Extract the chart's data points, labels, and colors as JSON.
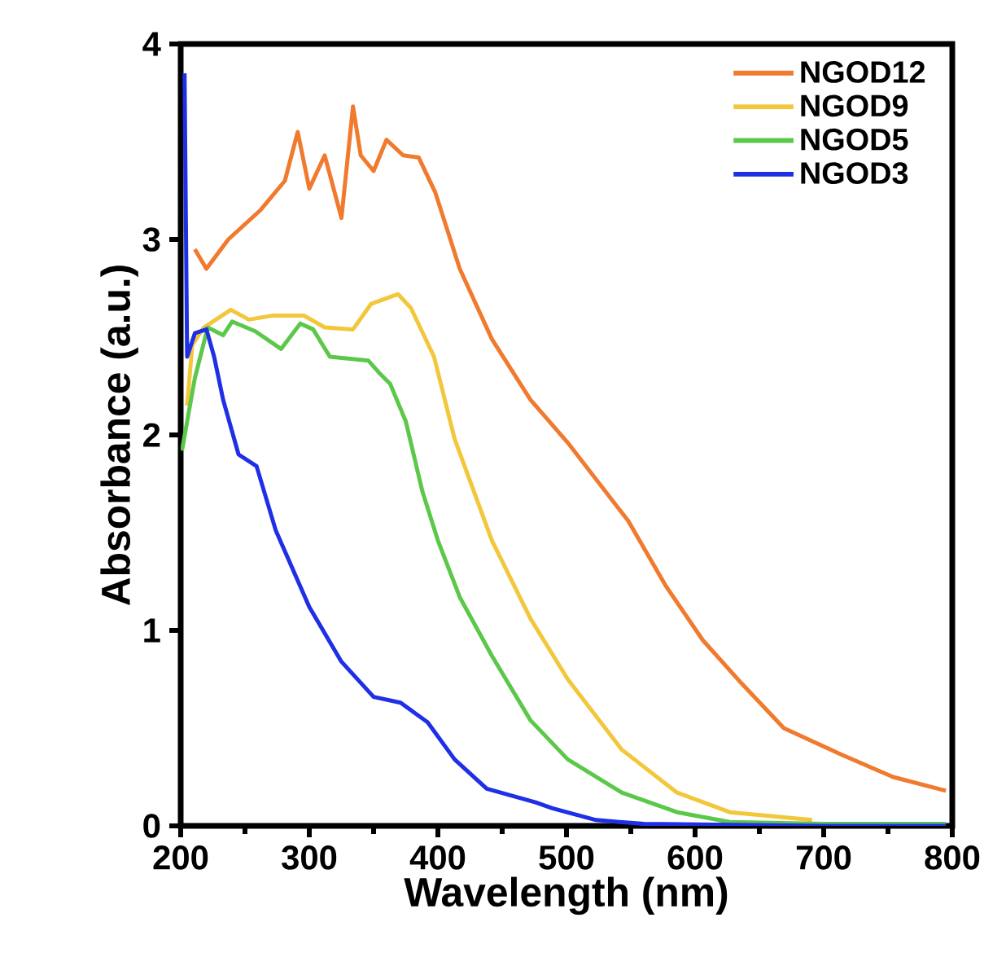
{
  "chart_data": {
    "type": "line",
    "xlabel": "Wavelength (nm)",
    "ylabel": "Absorbance (a.u.)",
    "xlim": [
      200,
      800
    ],
    "ylim": [
      0,
      4
    ],
    "xticks": [
      200,
      300,
      400,
      500,
      600,
      700,
      800
    ],
    "yticks": [
      0,
      1,
      2,
      3,
      4
    ],
    "grid": false,
    "legend": "top right",
    "line_style": "solid",
    "marker": "none",
    "series": [
      {
        "name": "NGOD12",
        "color": "#f07a2e",
        "x": [
          211,
          220,
          237,
          262,
          281,
          291,
          300,
          312,
          325,
          334,
          340,
          350,
          360,
          373,
          385,
          398,
          417,
          442,
          472,
          501,
          548,
          577,
          606,
          636,
          669,
          712,
          754,
          795
        ],
        "values": [
          2.95,
          2.85,
          3.0,
          3.15,
          3.3,
          3.55,
          3.26,
          3.43,
          3.11,
          3.68,
          3.43,
          3.35,
          3.51,
          3.43,
          3.42,
          3.24,
          2.85,
          2.49,
          2.18,
          1.96,
          1.56,
          1.23,
          0.95,
          0.73,
          0.5,
          0.37,
          0.25,
          0.18
        ]
      },
      {
        "name": "NGOD9",
        "color": "#f2c73c",
        "x": [
          205,
          209,
          218,
          239,
          253,
          271,
          296,
          312,
          334,
          348,
          369,
          379,
          397,
          413,
          442,
          472,
          501,
          543,
          586,
          627,
          691
        ],
        "values": [
          2.15,
          2.46,
          2.55,
          2.64,
          2.59,
          2.61,
          2.61,
          2.55,
          2.54,
          2.67,
          2.72,
          2.65,
          2.4,
          1.98,
          1.46,
          1.06,
          0.75,
          0.39,
          0.17,
          0.07,
          0.03
        ]
      },
      {
        "name": "NGOD5",
        "color": "#5cc84a",
        "x": [
          201,
          211,
          221,
          233,
          240,
          258,
          278,
          293,
          303,
          316,
          346,
          354,
          363,
          375,
          388,
          400,
          417,
          442,
          472,
          501,
          543,
          586,
          627,
          700,
          795
        ],
        "values": [
          1.92,
          2.29,
          2.55,
          2.51,
          2.58,
          2.53,
          2.44,
          2.57,
          2.54,
          2.4,
          2.38,
          2.32,
          2.26,
          2.07,
          1.71,
          1.46,
          1.17,
          0.87,
          0.54,
          0.34,
          0.17,
          0.07,
          0.02,
          0.01,
          0.01
        ]
      },
      {
        "name": "NGOD3",
        "color": "#1f2fe6",
        "x": [
          203,
          205,
          211,
          220,
          226,
          233,
          245,
          259,
          274,
          300,
          325,
          350,
          371,
          392,
          413,
          438,
          476,
          489,
          523,
          560,
          700,
          795
        ],
        "values": [
          3.85,
          2.4,
          2.52,
          2.54,
          2.4,
          2.18,
          1.9,
          1.84,
          1.51,
          1.12,
          0.84,
          0.66,
          0.63,
          0.53,
          0.34,
          0.19,
          0.12,
          0.09,
          0.03,
          0.01,
          0.0,
          0.0
        ]
      }
    ]
  }
}
